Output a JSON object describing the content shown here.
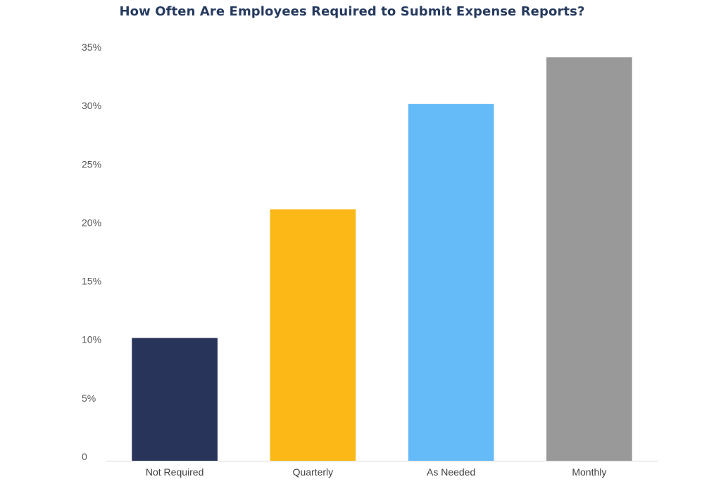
{
  "chart_data": {
    "type": "bar",
    "title": "How Often Are Employees Required to Submit Expense Reports?",
    "xlabel": "",
    "ylabel": "",
    "categories": [
      "Not Required",
      "Quarterly",
      "As Needed",
      "Monthly"
    ],
    "values": [
      10.5,
      21.5,
      30.5,
      34.5
    ],
    "colors": [
      "#28345a",
      "#fbb817",
      "#65baf8",
      "#999999"
    ],
    "ylim": [
      0,
      35
    ],
    "yticks": [
      0,
      5,
      10,
      15,
      20,
      25,
      30,
      35
    ],
    "ytick_labels": [
      "0",
      "5%",
      "10%",
      "15%",
      "20%",
      "25%",
      "30%",
      "35%"
    ],
    "grid": false,
    "legend": "none"
  }
}
